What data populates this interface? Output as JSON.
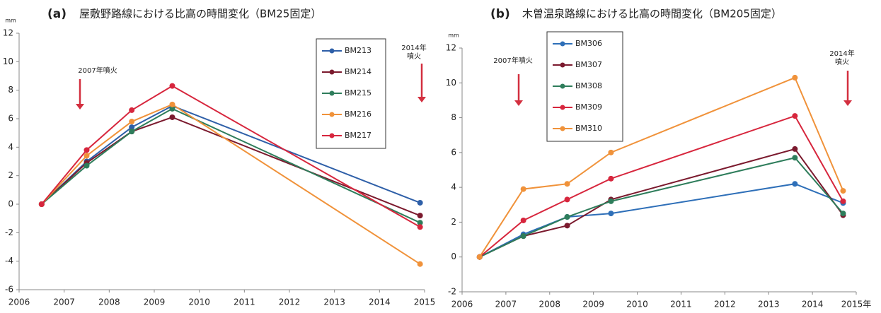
{
  "chart_data": [
    {
      "type": "line",
      "label": "(a)",
      "title": "屋敷野路線における比高の時間変化（BM25固定）",
      "y_unit": "mm",
      "x": [
        2006.5,
        2007.5,
        2008.5,
        2009.4,
        2014.9
      ],
      "xlim": [
        2006,
        2015
      ],
      "xticks": [
        2006,
        2007,
        2008,
        2009,
        2010,
        2011,
        2012,
        2013,
        2014,
        2015
      ],
      "ylim": [
        -6,
        12
      ],
      "yticks": [
        -6,
        -4,
        -2,
        0,
        2,
        4,
        6,
        8,
        10,
        12
      ],
      "annotations": [
        [
          "2007年噴火"
        ],
        [
          "2014年",
          "噴火"
        ]
      ],
      "series": [
        {
          "name": "BM213",
          "color": "#2e5fa8",
          "values": [
            0,
            3.0,
            5.4,
            6.9,
            0.1
          ]
        },
        {
          "name": "BM214",
          "color": "#7b1a2e",
          "values": [
            0,
            2.9,
            5.1,
            6.1,
            -0.8
          ]
        },
        {
          "name": "BM215",
          "color": "#2e7d5b",
          "values": [
            0,
            2.7,
            5.1,
            6.7,
            -1.3
          ]
        },
        {
          "name": "BM216",
          "color": "#f0923a",
          "values": [
            0,
            3.4,
            5.8,
            7.0,
            -4.2
          ]
        },
        {
          "name": "BM217",
          "color": "#d7263d",
          "values": [
            0,
            3.8,
            6.6,
            8.3,
            -1.6
          ]
        }
      ]
    },
    {
      "type": "line",
      "label": "(b)",
      "title": "木曽温泉路線における比高の時間変化（BM205固定）",
      "y_unit": "mm",
      "x": [
        2006.4,
        2007.4,
        2008.4,
        2009.4,
        2013.6,
        2014.7
      ],
      "xlim": [
        2006,
        2015
      ],
      "xticks": [
        2006,
        2007,
        2008,
        2009,
        2010,
        2011,
        2012,
        2013,
        2014,
        {
          "value": 2015,
          "label": "2015年"
        }
      ],
      "ylim": [
        -2,
        12
      ],
      "yticks": [
        -2,
        0,
        2,
        4,
        6,
        8,
        10,
        12
      ],
      "annotations": [
        [
          "2007年噴火"
        ],
        [
          "2014年",
          "噴火"
        ]
      ],
      "series": [
        {
          "name": "BM306",
          "color": "#2e6fb8",
          "values": [
            0,
            1.3,
            2.3,
            2.5,
            4.2,
            3.1
          ]
        },
        {
          "name": "BM307",
          "color": "#7b1a2e",
          "values": [
            0,
            1.2,
            1.8,
            3.3,
            6.2,
            2.4
          ]
        },
        {
          "name": "BM308",
          "color": "#2e7d5b",
          "values": [
            0,
            1.2,
            2.3,
            3.2,
            5.7,
            2.5
          ]
        },
        {
          "name": "BM309",
          "color": "#d7263d",
          "values": [
            0,
            2.1,
            3.3,
            4.5,
            8.1,
            3.2
          ]
        },
        {
          "name": "BM310",
          "color": "#f0923a",
          "values": [
            0,
            3.9,
            4.2,
            6.0,
            10.3,
            3.8
          ]
        }
      ]
    }
  ]
}
